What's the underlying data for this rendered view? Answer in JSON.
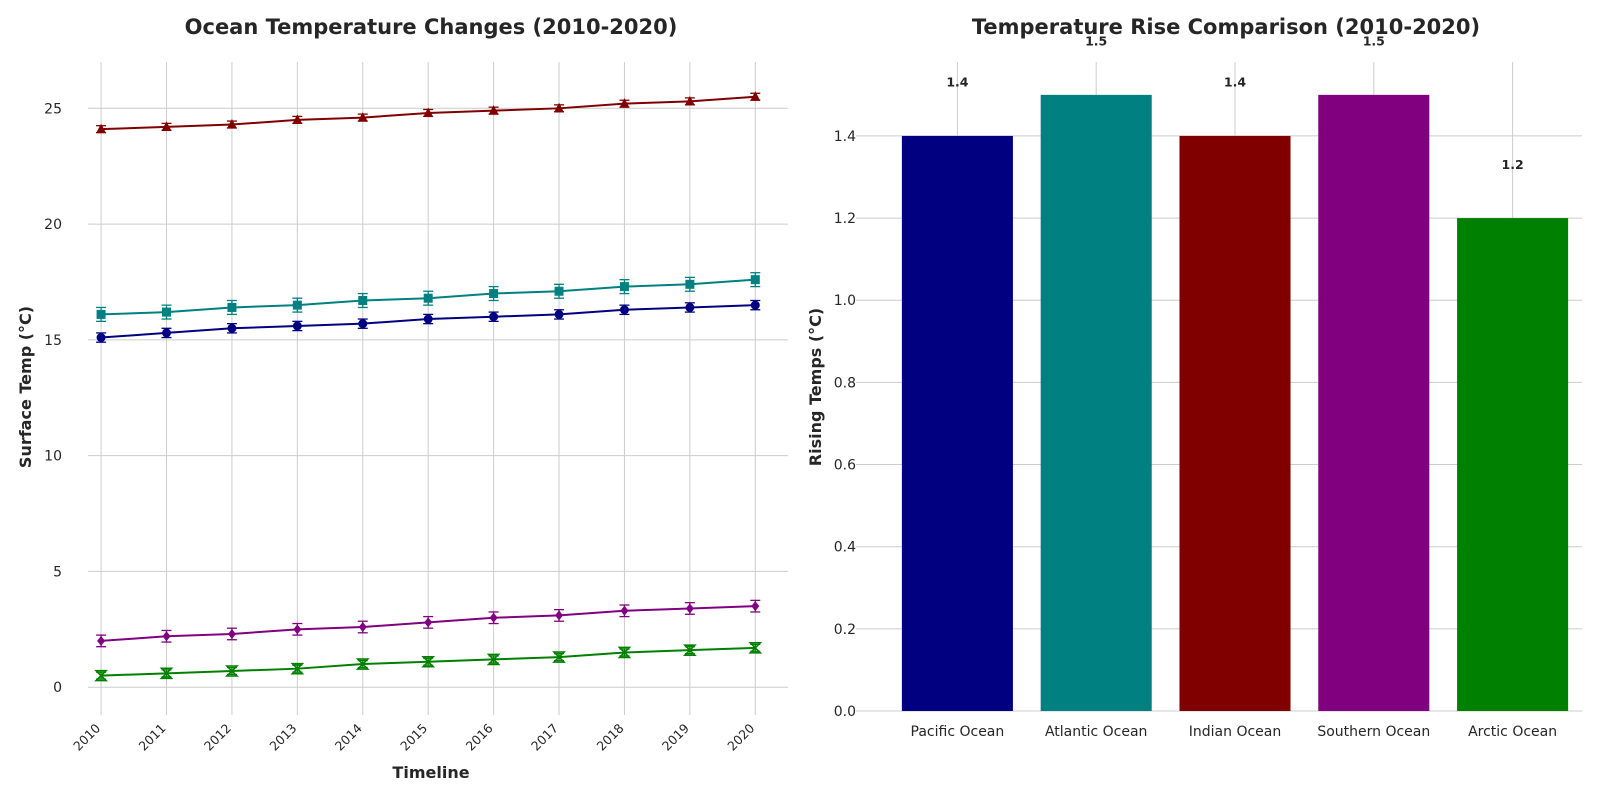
{
  "chart_data": [
    {
      "type": "line",
      "title": "Ocean Temperature Changes (2010-2020)",
      "xlabel": "Timeline",
      "ylabel": "Surface Temp (°C)",
      "x": [
        2010,
        2011,
        2012,
        2013,
        2014,
        2015,
        2016,
        2017,
        2018,
        2019,
        2020
      ],
      "x_tick_labels": [
        "2010",
        "2011",
        "2012",
        "2013",
        "2014",
        "2015",
        "2016",
        "2017",
        "2018",
        "2019",
        "2020"
      ],
      "xlim": [
        2009.8,
        2020.5
      ],
      "ylim": [
        -1.2,
        27
      ],
      "y_ticks": [
        0,
        5,
        10,
        15,
        20,
        25
      ],
      "grid": true,
      "series": [
        {
          "key": "pacific",
          "color": "#000080",
          "marker": "circle",
          "values": [
            15.1,
            15.3,
            15.5,
            15.6,
            15.7,
            15.9,
            16.0,
            16.1,
            16.3,
            16.4,
            16.5
          ],
          "errors": [
            0.2,
            0.2,
            0.2,
            0.2,
            0.2,
            0.2,
            0.2,
            0.2,
            0.2,
            0.2,
            0.2
          ]
        },
        {
          "key": "atlantic",
          "color": "#008080",
          "marker": "square",
          "values": [
            16.1,
            16.2,
            16.4,
            16.5,
            16.7,
            16.8,
            17.0,
            17.1,
            17.3,
            17.4,
            17.6
          ],
          "errors": [
            0.3,
            0.3,
            0.3,
            0.3,
            0.3,
            0.3,
            0.3,
            0.3,
            0.3,
            0.3,
            0.3
          ]
        },
        {
          "key": "indian",
          "color": "#800000",
          "marker": "triangle",
          "values": [
            24.1,
            24.2,
            24.3,
            24.5,
            24.6,
            24.8,
            24.9,
            25.0,
            25.2,
            25.3,
            25.5
          ],
          "errors": [
            0.15,
            0.15,
            0.15,
            0.15,
            0.15,
            0.15,
            0.15,
            0.15,
            0.15,
            0.15,
            0.15
          ]
        },
        {
          "key": "southern",
          "color": "#800080",
          "marker": "diamond",
          "values": [
            2.0,
            2.2,
            2.3,
            2.5,
            2.6,
            2.8,
            3.0,
            3.1,
            3.3,
            3.4,
            3.5
          ],
          "errors": [
            0.25,
            0.25,
            0.25,
            0.25,
            0.25,
            0.25,
            0.25,
            0.25,
            0.25,
            0.25,
            0.25
          ]
        },
        {
          "key": "arctic",
          "color": "#008000",
          "marker": "x",
          "values": [
            0.5,
            0.6,
            0.7,
            0.8,
            1.0,
            1.1,
            1.2,
            1.3,
            1.5,
            1.6,
            1.7
          ],
          "errors": [
            0.15,
            0.15,
            0.15,
            0.15,
            0.15,
            0.15,
            0.15,
            0.15,
            0.15,
            0.15,
            0.15
          ]
        }
      ]
    },
    {
      "type": "bar",
      "title": "Temperature Rise Comparison (2010-2020)",
      "xlabel": "",
      "ylabel": "Rising Temps (°C)",
      "categories": [
        "Pacific Ocean",
        "Atlantic Ocean",
        "Indian Ocean",
        "Southern Ocean",
        "Arctic Ocean"
      ],
      "values": [
        1.4,
        1.5,
        1.4,
        1.5,
        1.2
      ],
      "data_labels": [
        "1.4",
        "1.5",
        "1.4",
        "1.5",
        "1.2"
      ],
      "colors": [
        "#000080",
        "#008080",
        "#800000",
        "#800080",
        "#008000"
      ],
      "ylim": [
        0,
        1.58
      ],
      "y_ticks": [
        0.0,
        0.2,
        0.4,
        0.6,
        0.8,
        1.0,
        1.2,
        1.4
      ],
      "y_tick_labels": [
        "0.0",
        "0.2",
        "0.4",
        "0.6",
        "0.8",
        "1.0",
        "1.2",
        "1.4"
      ],
      "grid": true
    }
  ]
}
